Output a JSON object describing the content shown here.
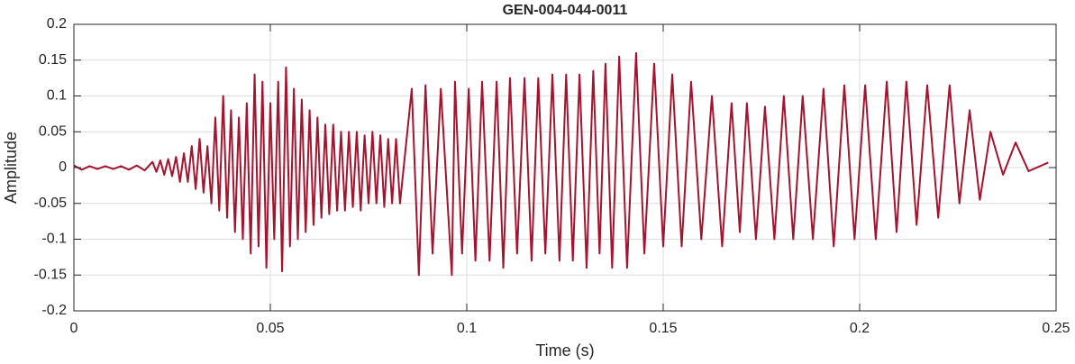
{
  "chart_data": {
    "type": "line",
    "title": "GEN-004-044-0011",
    "x_label": "Time (s)",
    "y_label": "Amplitude",
    "color": "#a2142f",
    "grid": true,
    "xlim": [
      0,
      0.25
    ],
    "xticks": [
      0,
      0.05,
      0.1,
      0.15,
      0.2,
      0.25
    ],
    "ylim": [
      -0.2,
      0.2
    ],
    "yticks": [
      -0.2,
      -0.15,
      -0.1,
      -0.05,
      0,
      0.05,
      0.1,
      0.15,
      0.2
    ],
    "x": [
      0,
      0.002,
      0.004,
      0.006,
      0.008,
      0.01,
      0.012,
      0.014,
      0.016,
      0.018,
      0.02,
      0.021,
      0.022,
      0.023,
      0.024,
      0.025,
      0.026,
      0.027,
      0.028,
      0.029,
      0.03,
      0.031,
      0.032,
      0.033,
      0.034,
      0.035,
      0.036,
      0.037,
      0.038,
      0.039,
      0.04,
      0.041,
      0.042,
      0.043,
      0.044,
      0.045,
      0.046,
      0.047,
      0.048,
      0.049,
      0.05,
      0.051,
      0.052,
      0.053,
      0.054,
      0.055,
      0.056,
      0.057,
      0.058,
      0.059,
      0.06,
      0.061,
      0.062,
      0.063,
      0.064,
      0.065,
      0.066,
      0.067,
      0.068,
      0.069,
      0.07,
      0.071,
      0.072,
      0.073,
      0.074,
      0.075,
      0.076,
      0.077,
      0.078,
      0.079,
      0.08,
      0.081,
      0.082,
      0.083,
      0.086,
      0.0878,
      0.0895,
      0.0913,
      0.0934,
      0.0962,
      0.097,
      0.0988,
      0.1005,
      0.1022,
      0.1039,
      0.1058,
      0.1076,
      0.1093,
      0.111,
      0.1128,
      0.1147,
      0.1165,
      0.1182,
      0.12,
      0.1218,
      0.1236,
      0.1253,
      0.127,
      0.1287,
      0.1305,
      0.1322,
      0.1338,
      0.1353,
      0.137,
      0.1388,
      0.1408,
      0.1431,
      0.1452,
      0.1477,
      0.15,
      0.1523,
      0.1547,
      0.1571,
      0.1597,
      0.1624,
      0.165,
      0.1674,
      0.1695,
      0.1713,
      0.1736,
      0.1759,
      0.1783,
      0.1807,
      0.1831,
      0.1855,
      0.1881,
      0.1908,
      0.1934,
      0.1961,
      0.1987,
      0.2014,
      0.2041,
      0.2069,
      0.2094,
      0.2119,
      0.2145,
      0.2172,
      0.22,
      0.2229,
      0.2254,
      0.228,
      0.2306,
      0.2333,
      0.2365,
      0.2397,
      0.243,
      0.248
    ],
    "values": [
      0.003,
      -0.003,
      0.002,
      -0.002,
      0.002,
      -0.002,
      0.002,
      -0.003,
      0.003,
      -0.004,
      0.008,
      -0.006,
      0.01,
      -0.01,
      0.012,
      -0.012,
      0.015,
      -0.02,
      0.02,
      -0.02,
      0.03,
      -0.03,
      0.04,
      -0.035,
      0.03,
      -0.05,
      0.07,
      -0.06,
      0.1,
      -0.07,
      0.08,
      -0.09,
      0.07,
      -0.1,
      0.09,
      -0.12,
      0.13,
      -0.11,
      0.12,
      -0.14,
      0.09,
      -0.1,
      0.12,
      -0.145,
      0.14,
      -0.11,
      0.11,
      -0.1,
      0.095,
      -0.09,
      0.08,
      -0.08,
      0.07,
      -0.07,
      0.06,
      -0.065,
      0.06,
      -0.06,
      0.05,
      -0.06,
      0.05,
      -0.055,
      0.05,
      -0.06,
      0.045,
      -0.05,
      0.05,
      -0.05,
      0.045,
      -0.055,
      0.04,
      -0.05,
      0.04,
      -0.05,
      0.11,
      -0.15,
      0.115,
      -0.12,
      0.11,
      -0.15,
      0.12,
      -0.12,
      0.11,
      -0.13,
      0.12,
      -0.13,
      0.12,
      -0.14,
      0.125,
      -0.12,
      0.125,
      -0.13,
      0.125,
      -0.12,
      0.13,
      -0.13,
      0.13,
      -0.13,
      0.13,
      -0.14,
      0.135,
      -0.12,
      0.145,
      -0.14,
      0.155,
      -0.14,
      0.16,
      -0.12,
      0.145,
      -0.11,
      0.13,
      -0.11,
      0.12,
      -0.1,
      0.1,
      -0.11,
      0.09,
      -0.09,
      0.09,
      -0.1,
      0.085,
      -0.1,
      0.1,
      -0.1,
      0.1,
      -0.1,
      0.11,
      -0.11,
      0.115,
      -0.1,
      0.115,
      -0.1,
      0.12,
      -0.09,
      0.12,
      -0.08,
      0.115,
      -0.07,
      0.115,
      -0.05,
      0.08,
      -0.045,
      0.05,
      -0.01,
      0.035,
      -0.005,
      0.007
    ]
  }
}
